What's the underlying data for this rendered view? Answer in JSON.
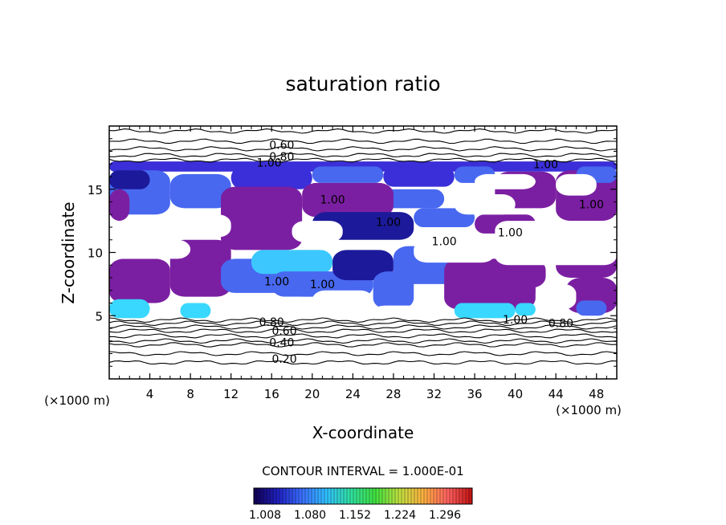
{
  "chart_data": {
    "type": "heatmap",
    "title": "saturation ratio",
    "xlabel": "X-coordinate",
    "ylabel": "Z-coordinate",
    "x_unit_left": "(×1000 m)",
    "x_unit_right": "(×1000 m)",
    "xlim": [
      0,
      50
    ],
    "ylim": [
      0,
      20
    ],
    "x_ticks": [
      4,
      8,
      12,
      16,
      20,
      24,
      28,
      32,
      36,
      40,
      44,
      48
    ],
    "y_ticks": [
      5,
      10,
      15
    ],
    "contour_interval_label": "CONTOUR INTERVAL = 1.000E-01",
    "colorbar": {
      "ticks": [
        "1.008",
        "1.080",
        "1.152",
        "1.224",
        "1.296"
      ],
      "colors": [
        "#100050",
        "#2020c0",
        "#3a70ff",
        "#30c0ff",
        "#30e0a0",
        "#40e040",
        "#c0e040",
        "#ffb040",
        "#ff6060",
        "#c01010"
      ]
    },
    "contour_labels": [
      {
        "text": "0.60",
        "x": 34,
        "z": 18.5
      },
      {
        "text": "0.80",
        "x": 34,
        "z": 17.6
      },
      {
        "text": "1.00",
        "x": 31.5,
        "z": 17.1
      },
      {
        "text": "1.00",
        "x": 86,
        "z": 17.0
      },
      {
        "text": "1.00",
        "x": 44,
        "z": 14.2
      },
      {
        "text": "1.00",
        "x": 95,
        "z": 13.8
      },
      {
        "text": "1.00",
        "x": 55,
        "z": 12.4
      },
      {
        "text": "1.00",
        "x": 79,
        "z": 11.6
      },
      {
        "text": "1.00",
        "x": 66,
        "z": 10.9
      },
      {
        "text": "1.00",
        "x": 33,
        "z": 7.7
      },
      {
        "text": "1.00",
        "x": 42,
        "z": 7.5
      },
      {
        "text": "0.80",
        "x": 32,
        "z": 4.5
      },
      {
        "text": "0.60",
        "x": 34.5,
        "z": 3.8
      },
      {
        "text": "0.40",
        "x": 34,
        "z": 2.9
      },
      {
        "text": "0.20",
        "x": 34.5,
        "z": 1.6
      },
      {
        "text": "1.00",
        "x": 80,
        "z": 4.7
      },
      {
        "text": "0.80",
        "x": 89,
        "z": 4.4
      }
    ]
  }
}
